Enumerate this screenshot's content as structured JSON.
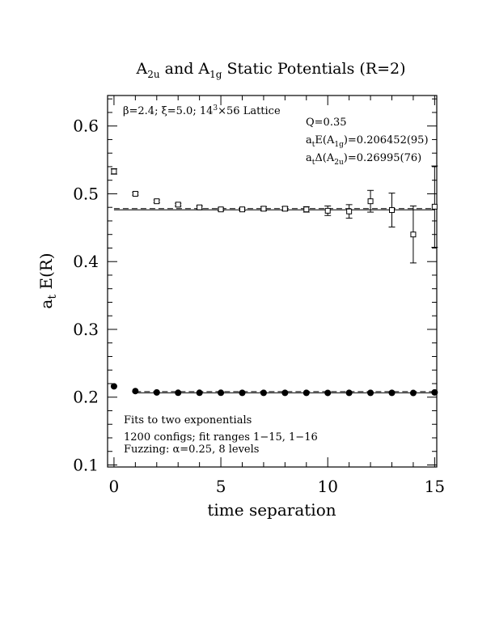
{
  "chart_data": {
    "type": "scatter",
    "title": {
      "a": "A",
      "a_sub": "2u",
      "mid": " and A",
      "b_sub": "1g",
      "rest": " Static Potentials (R=2)"
    },
    "xlabel": "time separation",
    "ylabel": {
      "main": "a",
      "sub": "t",
      "rest": " E(R)"
    },
    "xlim": [
      -0.3,
      15.1
    ],
    "ylim": [
      0.097,
      0.645
    ],
    "xticks": [
      0,
      5,
      10,
      15
    ],
    "xtick_labels": [
      "0",
      "5",
      "10",
      "15"
    ],
    "yticks": [
      0.1,
      0.2,
      0.3,
      0.4,
      0.5,
      0.6
    ],
    "ytick_labels": [
      "0.1",
      "0.2",
      "0.3",
      "0.4",
      "0.5",
      "0.6"
    ],
    "y_minor_step": 0.02,
    "x_minor_step": 1,
    "grid": false,
    "lattice_label": {
      "pre": "β=2.4; ξ=5.0; 14",
      "sup": "3",
      "post": "×56 Lattice"
    },
    "fit_info": {
      "q": "Q=0.35",
      "e1_pre": "a",
      "e1_sub1": "t",
      "e1_mid": "E(A",
      "e1_sub2": "1g",
      "e1_post": ")=0.206452(95)",
      "e2_pre": "a",
      "e2_sub1": "t",
      "e2_mid": "Δ(A",
      "e2_sub2": "2u",
      "e2_post": ")=0.26995(76)"
    },
    "notes": [
      "Fits to two exponentials",
      "1200 configs; fit ranges 1−15, 1−16",
      "Fuzzing: α=0.25, 8 levels"
    ],
    "fit_lines": [
      {
        "series": "A1g",
        "y": 0.206452,
        "x_start": 1,
        "x_end": 15
      },
      {
        "series": "A2u",
        "y": 0.476402,
        "x_start": 0,
        "x_end": 15
      }
    ],
    "series": [
      {
        "id": "A1g",
        "marker": "filled-circle",
        "x": [
          0,
          1,
          2,
          3,
          4,
          5,
          6,
          7,
          8,
          9,
          10,
          11,
          12,
          13,
          14,
          15
        ],
        "y": [
          0.216,
          0.209,
          0.207,
          0.2065,
          0.2065,
          0.2065,
          0.2064,
          0.2064,
          0.2064,
          0.2064,
          0.2063,
          0.2064,
          0.2064,
          0.2064,
          0.2062,
          0.207
        ],
        "err": [
          0,
          0,
          0,
          0,
          0,
          0,
          0,
          0,
          0,
          0,
          0,
          0,
          0,
          0,
          0,
          0
        ]
      },
      {
        "id": "A2u",
        "marker": "open-square",
        "x": [
          0,
          1,
          2,
          3,
          4,
          5,
          6,
          7,
          8,
          9,
          10,
          11,
          12,
          13,
          14,
          15
        ],
        "y": [
          0.533,
          0.5,
          0.489,
          0.484,
          0.48,
          0.477,
          0.477,
          0.478,
          0.478,
          0.477,
          0.475,
          0.474,
          0.489,
          0.476,
          0.44,
          0.481
        ],
        "err": [
          0.004,
          0.002,
          0.002,
          0.002,
          0.002,
          0.002,
          0.002,
          0.003,
          0.003,
          0.004,
          0.007,
          0.01,
          0.016,
          0.025,
          0.042,
          0.06
        ]
      }
    ]
  }
}
